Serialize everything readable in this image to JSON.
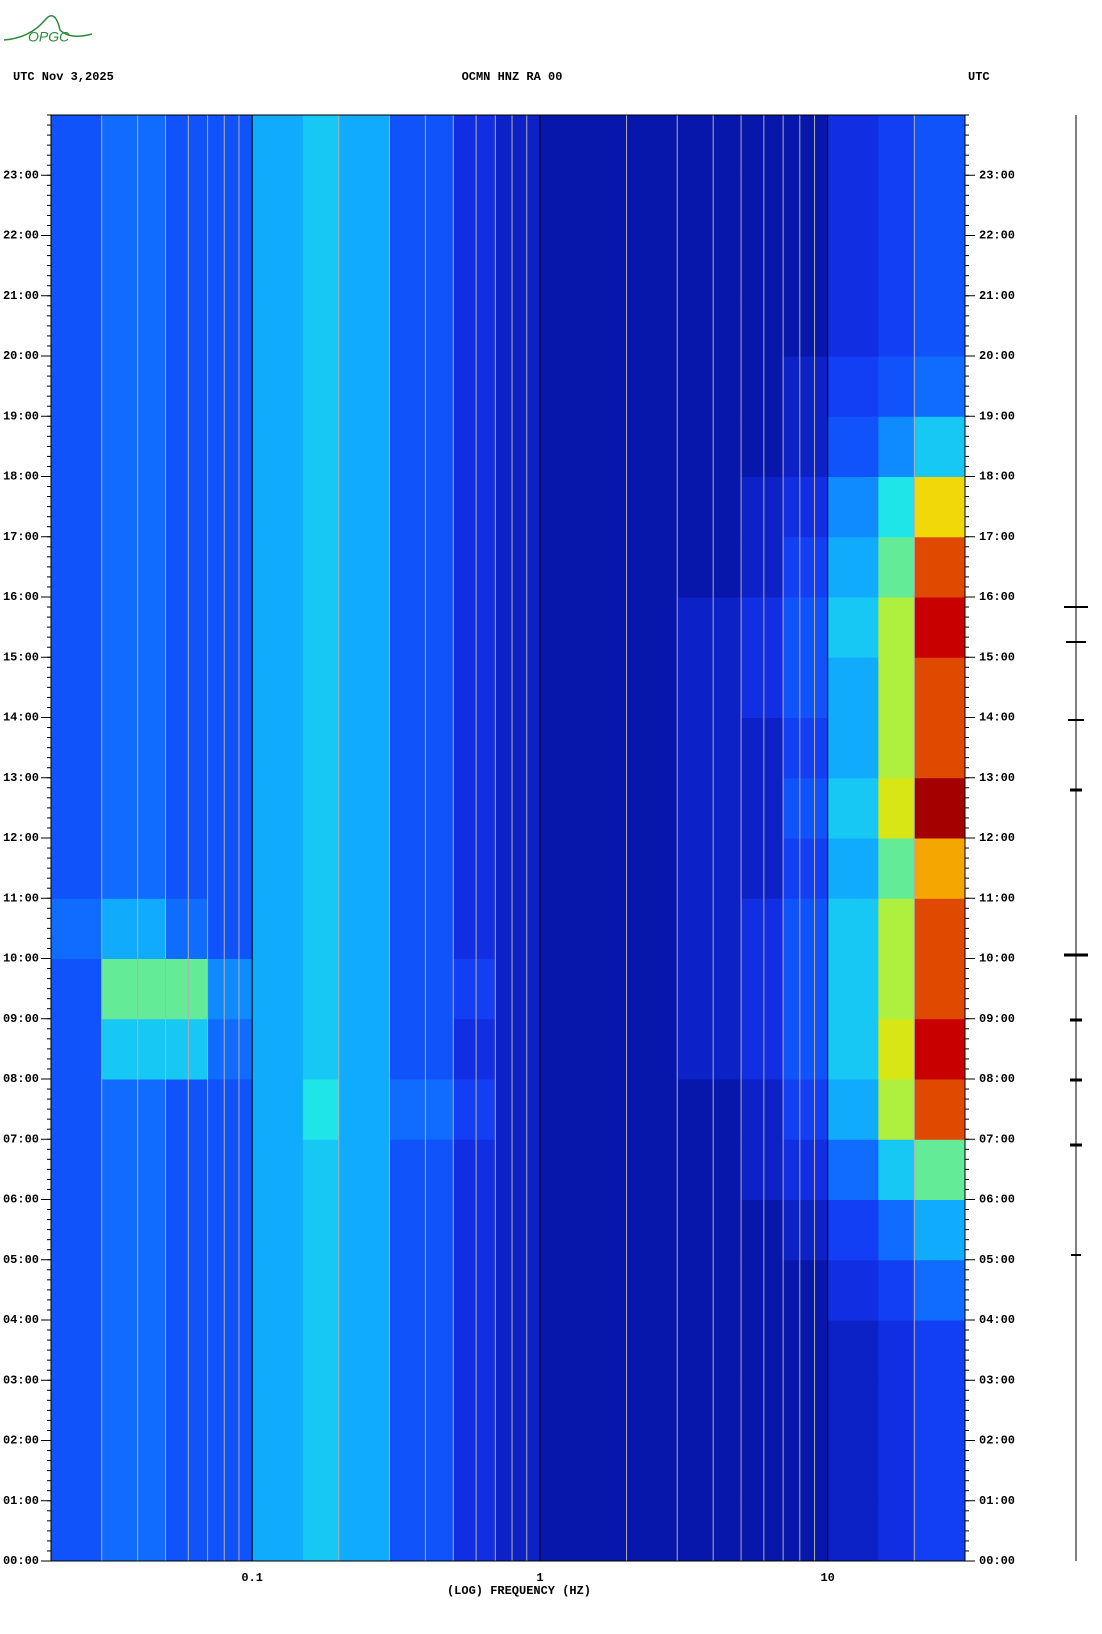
{
  "logo": "OPGC",
  "chart_data": {
    "type": "spectrogram",
    "title": "OCMN HNZ RA 00",
    "subtitle_left": "UTC  Nov 3,2025",
    "subtitle_right": "UTC",
    "xlabel": "(LOG) FREQUENCY (HZ)",
    "xscale": "log",
    "xlim": [
      0.02,
      30
    ],
    "xticks": [
      0.1,
      1,
      10
    ],
    "xminorticks": [
      0.03,
      0.04,
      0.05,
      0.06,
      0.07,
      0.08,
      0.09,
      0.2,
      0.3,
      0.4,
      0.5,
      0.6,
      0.7,
      0.8,
      0.9,
      2,
      3,
      4,
      5,
      6,
      7,
      8,
      9,
      20
    ],
    "ylim": [
      0,
      24
    ],
    "yticks": [
      {
        "value": 0,
        "label": "00:00"
      },
      {
        "value": 1,
        "label": "01:00"
      },
      {
        "value": 2,
        "label": "02:00"
      },
      {
        "value": 3,
        "label": "03:00"
      },
      {
        "value": 4,
        "label": "04:00"
      },
      {
        "value": 5,
        "label": "05:00"
      },
      {
        "value": 6,
        "label": "06:00"
      },
      {
        "value": 7,
        "label": "07:00"
      },
      {
        "value": 8,
        "label": "08:00"
      },
      {
        "value": 9,
        "label": "09:00"
      },
      {
        "value": 10,
        "label": "10:00"
      },
      {
        "value": 11,
        "label": "11:00"
      },
      {
        "value": 12,
        "label": "12:00"
      },
      {
        "value": 13,
        "label": "13:00"
      },
      {
        "value": 14,
        "label": "14:00"
      },
      {
        "value": 15,
        "label": "15:00"
      },
      {
        "value": 16,
        "label": "16:00"
      },
      {
        "value": 17,
        "label": "17:00"
      },
      {
        "value": 18,
        "label": "18:00"
      },
      {
        "value": 19,
        "label": "19:00"
      },
      {
        "value": 20,
        "label": "20:00"
      },
      {
        "value": 21,
        "label": "21:00"
      },
      {
        "value": 22,
        "label": "22:00"
      },
      {
        "value": 23,
        "label": "23:00"
      }
    ],
    "freq_bins": [
      0.02,
      0.03,
      0.05,
      0.07,
      0.1,
      0.15,
      0.2,
      0.3,
      0.5,
      0.7,
      1,
      2,
      3,
      5,
      7,
      10,
      15,
      20,
      30
    ],
    "y_bins": [
      0,
      1,
      2,
      3,
      4,
      5,
      6,
      7,
      8,
      9,
      10,
      11,
      12,
      13,
      14,
      15,
      16,
      17,
      18,
      19,
      20,
      21,
      22,
      23,
      24
    ],
    "zlim": [
      0,
      10
    ],
    "colors": [
      "#000080",
      "#0818b0",
      "#1434f0",
      "#1060ff",
      "#10a8ff",
      "#20e8e8",
      "#c8f020",
      "#ffd000",
      "#d00000",
      "#800000"
    ],
    "z": [
      [
        3,
        3.5,
        3,
        3,
        4.5,
        5,
        4.5,
        3,
        2,
        1.5,
        1,
        1,
        1,
        1,
        1,
        1.5,
        2,
        2.5
      ],
      [
        3,
        3.5,
        3,
        3,
        4.5,
        5,
        4.5,
        3,
        2,
        1.5,
        1,
        1,
        1,
        1,
        1,
        1.5,
        2,
        2.5
      ],
      [
        3,
        3.5,
        3,
        3,
        4.5,
        5,
        4.5,
        3,
        2,
        1.5,
        1,
        1,
        1,
        1,
        1,
        1.5,
        2,
        2.5
      ],
      [
        3,
        3.5,
        3,
        3,
        4.5,
        5,
        4.5,
        3,
        2,
        1.5,
        1,
        1,
        1,
        1,
        1,
        1.5,
        2,
        2.5
      ],
      [
        3,
        3.5,
        3,
        3,
        4.5,
        5,
        4.5,
        3,
        2,
        1.5,
        1,
        1,
        1,
        1,
        1,
        2,
        2.5,
        3.5
      ],
      [
        3,
        3.5,
        3,
        3,
        4.5,
        5,
        4.5,
        3,
        2,
        1.5,
        1,
        1,
        1,
        1,
        1.5,
        2.5,
        3.5,
        4.5
      ],
      [
        3,
        3.5,
        3,
        3,
        4.5,
        5,
        4.5,
        3,
        2,
        1.5,
        1,
        1,
        1,
        1.5,
        2,
        3.5,
        5,
        6
      ],
      [
        3,
        3.5,
        3,
        3,
        4.5,
        5.5,
        4.5,
        3.5,
        2.5,
        1.5,
        1,
        1,
        1,
        1.5,
        2.5,
        4.5,
        6.5,
        8.5
      ],
      [
        3,
        5,
        5,
        3.5,
        4.5,
        5,
        4.5,
        3,
        2,
        1.5,
        1,
        1,
        1.5,
        2,
        3,
        5,
        7,
        9
      ],
      [
        3,
        6,
        6,
        4,
        4.5,
        5,
        4.5,
        3,
        2.5,
        1.5,
        1,
        1,
        1.5,
        2,
        3,
        5,
        6.5,
        8.5
      ],
      [
        3.5,
        4.5,
        3.5,
        3,
        4.5,
        5,
        4.5,
        3,
        2,
        1.5,
        1,
        1,
        1.5,
        2,
        3,
        5,
        6.5,
        8.5
      ],
      [
        3,
        3.5,
        3,
        3,
        4.5,
        5,
        4.5,
        3,
        2,
        1.5,
        1,
        1,
        1.5,
        1.5,
        2.5,
        4.5,
        6,
        8
      ],
      [
        3,
        3.5,
        3,
        3,
        4.5,
        5,
        4.5,
        3,
        2,
        1.5,
        1,
        1,
        1.5,
        1.5,
        3,
        5,
        7,
        9.5
      ],
      [
        3,
        3.5,
        3,
        3,
        4.5,
        5,
        4.5,
        3,
        2,
        1.5,
        1,
        1,
        1.5,
        1.5,
        2.5,
        4.5,
        6.5,
        8.5
      ],
      [
        3,
        3.5,
        3,
        3,
        4.5,
        5,
        4.5,
        3,
        2,
        1.5,
        1,
        1,
        1.5,
        2,
        3,
        4.5,
        6.5,
        8.5
      ],
      [
        3,
        3.5,
        3,
        3,
        4.5,
        5,
        4.5,
        3,
        2,
        1.5,
        1,
        1,
        1.5,
        2,
        3,
        5,
        6.5,
        9
      ],
      [
        3,
        3.5,
        3,
        3,
        4.5,
        5,
        4.5,
        3,
        2,
        1.5,
        1,
        1,
        1,
        1.5,
        2.5,
        4.5,
        6,
        8.5
      ],
      [
        3,
        3.5,
        3,
        3,
        4.5,
        5,
        4.5,
        3,
        2,
        1.5,
        1,
        1,
        1,
        1.5,
        2,
        4,
        5.5,
        7.5
      ],
      [
        3,
        3.5,
        3,
        3,
        4.5,
        5,
        4.5,
        3,
        2,
        1.5,
        1,
        1,
        1,
        1,
        1.5,
        3,
        4,
        5
      ],
      [
        3,
        3.5,
        3,
        3,
        4.5,
        5,
        4.5,
        3,
        2,
        1.5,
        1,
        1,
        1,
        1,
        1.5,
        2.5,
        3,
        3.5
      ],
      [
        3,
        3.5,
        3,
        3,
        4.5,
        5,
        4.5,
        3,
        2,
        1.5,
        1,
        1,
        1,
        1,
        1,
        2,
        2.5,
        3
      ],
      [
        3,
        3.5,
        3,
        3,
        4.5,
        5,
        4.5,
        3,
        2,
        1.5,
        1,
        1,
        1,
        1,
        1,
        2,
        2.5,
        3
      ],
      [
        3,
        3.5,
        3,
        3,
        4.5,
        5,
        4.5,
        3,
        2,
        1.5,
        1,
        1,
        1,
        1,
        1,
        2,
        2.5,
        3
      ],
      [
        3,
        3.5,
        3,
        3,
        4.5,
        5,
        4.5,
        3,
        2,
        1.5,
        1,
        1,
        1,
        1,
        1,
        2,
        2.5,
        3
      ]
    ]
  }
}
